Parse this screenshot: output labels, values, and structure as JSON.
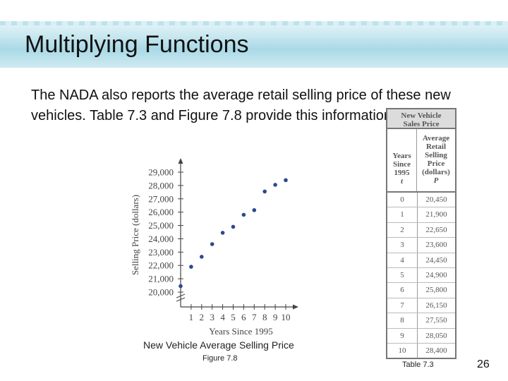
{
  "slide": {
    "title": "Multiplying Functions",
    "body": "The NADA also reports the average retail selling price of these new vehicles. Table 7.3 and Figure 7.8 provide this information.",
    "page_number": "26"
  },
  "figure": {
    "caption": "New Vehicle Average Selling Price",
    "label": "Figure 7.8"
  },
  "table": {
    "title_line1": "New Vehicle",
    "title_line2": "Sales Price",
    "col1_line1": "Years",
    "col1_line2": "Since",
    "col1_line3": "1995",
    "col1_var": "t",
    "col2_line1": "Average",
    "col2_line2": "Retail",
    "col2_line3": "Selling",
    "col2_line4": "Price",
    "col2_line5": "(dollars)",
    "col2_var": "P",
    "rows": [
      {
        "t": "0",
        "p": "20,450"
      },
      {
        "t": "1",
        "p": "21,900"
      },
      {
        "t": "2",
        "p": "22,650"
      },
      {
        "t": "3",
        "p": "23,600"
      },
      {
        "t": "4",
        "p": "24,450"
      },
      {
        "t": "5",
        "p": "24,900"
      },
      {
        "t": "6",
        "p": "25,800"
      },
      {
        "t": "7",
        "p": "26,150"
      },
      {
        "t": "8",
        "p": "27,550"
      },
      {
        "t": "9",
        "p": "28,050"
      },
      {
        "t": "10",
        "p": "28,400"
      }
    ],
    "label": "Table 7.3"
  },
  "chart_data": {
    "type": "scatter",
    "xlabel": "Years Since 1995",
    "ylabel": "Selling Price (dollars)",
    "x": [
      0,
      1,
      2,
      3,
      4,
      5,
      6,
      7,
      8,
      9,
      10
    ],
    "y": [
      20450,
      21900,
      22650,
      23600,
      24450,
      24900,
      25800,
      26150,
      27550,
      28050,
      28400
    ],
    "x_ticks": [
      "1",
      "2",
      "3",
      "4",
      "5",
      "6",
      "7",
      "8",
      "9",
      "10"
    ],
    "y_ticks": [
      "20,000",
      "21,000",
      "22,000",
      "23,000",
      "24,000",
      "25,000",
      "26,000",
      "27,000",
      "28,000",
      "29,000"
    ],
    "xlim": [
      0,
      10
    ],
    "ylim": [
      20000,
      29000
    ],
    "axis_break": "y",
    "grid": false,
    "point_color": "#2b4a8c"
  }
}
